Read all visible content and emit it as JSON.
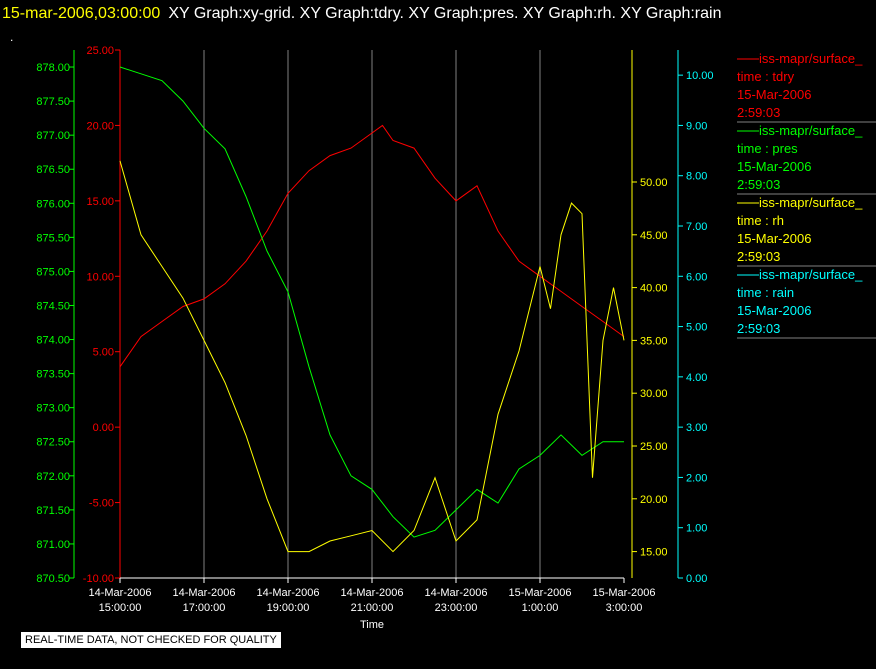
{
  "header": {
    "timestamp": "15-mar-2006,03:00:00",
    "graphs": "XY Graph:xy-grid.  XY Graph:tdry.  XY Graph:pres.  XY Graph:rh.  XY Graph:rain",
    "dot": "."
  },
  "footer": {
    "quality_note": "REAL-TIME DATA, NOT CHECKED FOR QUALITY"
  },
  "chart_data": {
    "type": "line",
    "xlabel": "Time",
    "x_ticks": [
      {
        "date": "14-Mar-2006",
        "time": "15:00:00"
      },
      {
        "date": "14-Mar-2006",
        "time": "17:00:00"
      },
      {
        "date": "14-Mar-2006",
        "time": "19:00:00"
      },
      {
        "date": "14-Mar-2006",
        "time": "21:00:00"
      },
      {
        "date": "14-Mar-2006",
        "time": "23:00:00"
      },
      {
        "date": "15-Mar-2006",
        "time": "1:00:00"
      },
      {
        "date": "15-Mar-2006",
        "time": "3:00:00"
      }
    ],
    "x_range_hours": [
      15,
      27
    ],
    "grid": "vertical lines at x ticks",
    "axes": {
      "tdry": {
        "color": "#ff0000",
        "range": [
          -10,
          25
        ],
        "ticks": [
          "25.00",
          "20.00",
          "15.00",
          "10.00",
          "5.00",
          "0.00",
          "-5.00",
          "-10.00"
        ]
      },
      "pres": {
        "color": "#00ff00",
        "range": [
          870.5,
          878.25
        ],
        "ticks": [
          "878.00",
          "877.50",
          "877.00",
          "876.50",
          "876.00",
          "875.50",
          "875.00",
          "874.50",
          "874.00",
          "873.50",
          "873.00",
          "872.50",
          "872.00",
          "871.50",
          "871.00",
          "870.50"
        ]
      },
      "rh": {
        "color": "#ffff00",
        "range": [
          12.5,
          62.5
        ],
        "ticks": [
          "50.00",
          "45.00",
          "40.00",
          "35.00",
          "30.00",
          "25.00",
          "20.00",
          "15.00"
        ]
      },
      "rain": {
        "color": "#00ffff",
        "range": [
          0,
          10.5
        ],
        "ticks": [
          "10.00",
          "9.00",
          "8.00",
          "7.00",
          "6.00",
          "5.00",
          "4.00",
          "3.00",
          "2.00",
          "1.00",
          "0.00"
        ]
      }
    },
    "series": [
      {
        "name": "tdry",
        "color": "#ff0000",
        "x": [
          15,
          15.5,
          16,
          16.5,
          17,
          17.5,
          18,
          18.5,
          19,
          19.5,
          20,
          20.5,
          21,
          21.25,
          21.5,
          22,
          22.5,
          23,
          23.5,
          24,
          24.5,
          25,
          25.5,
          26,
          26.5,
          27
        ],
        "y": [
          4,
          6,
          7,
          8,
          8.5,
          9.5,
          11,
          13,
          15.5,
          17,
          18,
          18.5,
          19.5,
          20,
          19,
          18.5,
          16.5,
          15,
          16,
          13,
          11,
          10,
          9,
          8,
          7,
          6
        ]
      },
      {
        "name": "pres",
        "color": "#00ff00",
        "x": [
          15,
          15.5,
          16,
          16.5,
          17,
          17.5,
          18,
          18.5,
          19,
          19.5,
          20,
          20.5,
          21,
          21.5,
          22,
          22.5,
          23,
          23.5,
          24,
          24.5,
          25,
          25.5,
          26,
          26.5,
          27
        ],
        "y": [
          878.0,
          877.9,
          877.8,
          877.5,
          877.1,
          876.8,
          876.1,
          875.3,
          874.7,
          873.6,
          872.6,
          872.0,
          871.8,
          871.4,
          871.1,
          871.2,
          871.5,
          871.8,
          871.6,
          872.1,
          872.3,
          872.6,
          872.3,
          872.5,
          872.5
        ]
      },
      {
        "name": "rh",
        "color": "#ffff00",
        "x": [
          15,
          15.5,
          16,
          16.5,
          17,
          17.5,
          18,
          18.5,
          19,
          19.5,
          20,
          20.5,
          21,
          21.5,
          22,
          22.5,
          23,
          23.5,
          24,
          24.5,
          25,
          25.25,
          25.5,
          25.75,
          26,
          26.25,
          26.5,
          26.75,
          27
        ],
        "y": [
          52,
          45,
          42,
          39,
          35,
          31,
          26,
          20,
          15,
          15,
          16,
          16.5,
          17,
          15,
          17,
          22,
          16,
          18,
          28,
          34,
          42,
          38,
          45,
          48,
          47,
          22,
          35,
          40,
          35
        ]
      },
      {
        "name": "rain",
        "color": "#00ffff",
        "x": [
          15,
          27
        ],
        "y": [
          0,
          0
        ]
      }
    ],
    "legend": [
      {
        "series": "iss-mapr/surface_",
        "var": "time : tdry",
        "date": "15-Mar-2006",
        "time": "2:59:03",
        "color": "#ff0000"
      },
      {
        "series": "iss-mapr/surface_",
        "var": "time : pres",
        "date": "15-Mar-2006",
        "time": "2:59:03",
        "color": "#00ff00"
      },
      {
        "series": "iss-mapr/surface_",
        "var": "time : rh",
        "date": "15-Mar-2006",
        "time": "2:59:03",
        "color": "#ffff00"
      },
      {
        "series": "iss-mapr/surface_",
        "var": "time : rain",
        "date": "15-Mar-2006",
        "time": "2:59:03",
        "color": "#00ffff"
      }
    ],
    "legend_position": "right"
  }
}
